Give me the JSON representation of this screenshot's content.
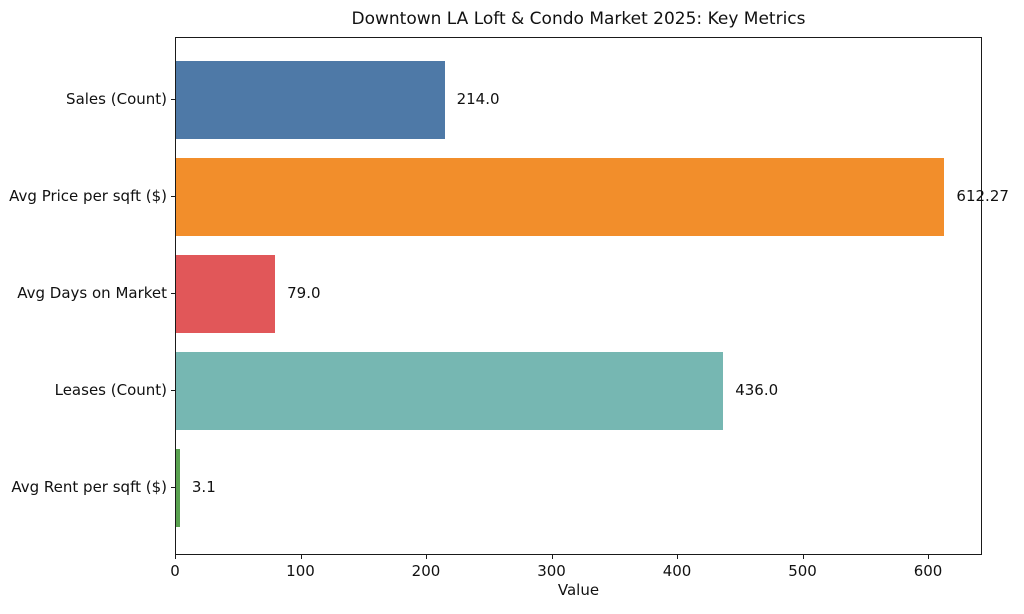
{
  "chart_data": {
    "type": "bar",
    "orientation": "horizontal",
    "title": "Downtown LA Loft & Condo Market 2025: Key Metrics",
    "xlabel": "Value",
    "ylabel": "",
    "categories": [
      "Sales (Count)",
      "Avg Price per sqft ($)",
      "Avg Days on Market",
      "Leases (Count)",
      "Avg Rent per sqft ($)"
    ],
    "values": [
      214.0,
      612.27,
      79.0,
      436.0,
      3.1
    ],
    "value_labels": [
      "214.0",
      "612.27",
      "79.0",
      "436.0",
      "3.1"
    ],
    "bar_colors": [
      "#4e79a7",
      "#f28e2b",
      "#e15759",
      "#76b7b2",
      "#59a14f"
    ],
    "xlim": [
      0,
      643
    ],
    "xticks": [
      0,
      100,
      200,
      300,
      400,
      500,
      600
    ],
    "grid": false,
    "legend": null,
    "background_color": "#ffffff",
    "text_color": "#111111"
  }
}
